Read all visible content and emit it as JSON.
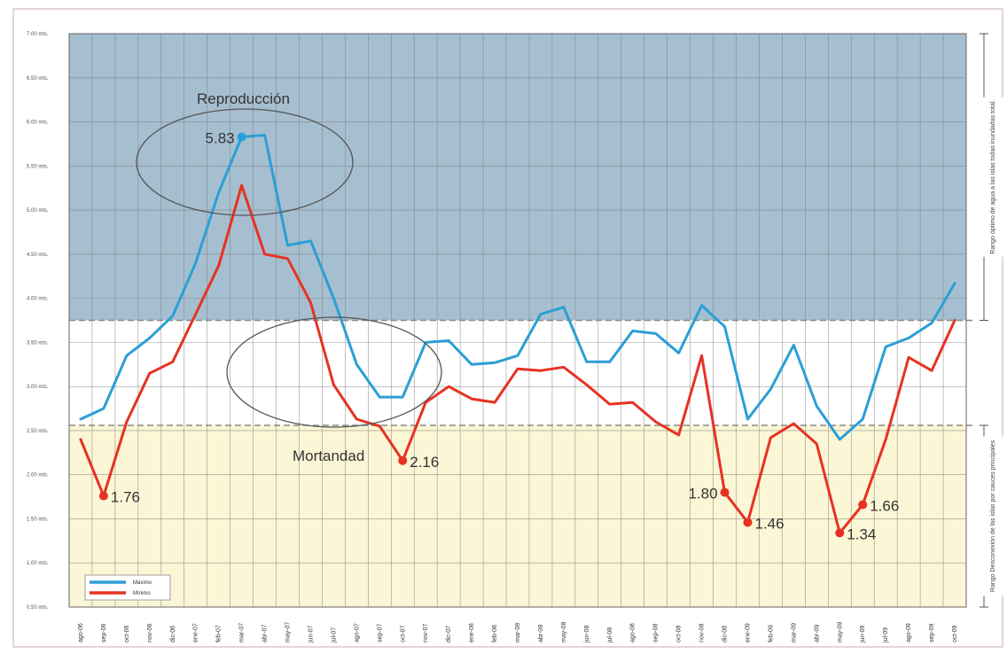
{
  "chart_data": {
    "type": "line",
    "title": "",
    "xlabel": "",
    "ylabel": "",
    "ylim": [
      0.5,
      7.0
    ],
    "grid": true,
    "legend_position": "bottom-left",
    "y_ticks": [
      "0.50 mts.",
      "1.00 mts.",
      "1.50 mts.",
      "2.00 mts.",
      "2.50 mts.",
      "3.00 mts.",
      "3.50 mts.",
      "4.00 mts.",
      "4.50 mts.",
      "5.00 mts.",
      "5.50 mts.",
      "6.00 mts.",
      "6.50 mts.",
      "7.00 mts."
    ],
    "y_tick_values": [
      0.5,
      1.0,
      1.5,
      2.0,
      2.5,
      3.0,
      3.5,
      4.0,
      4.5,
      5.0,
      5.5,
      6.0,
      6.5,
      7.0
    ],
    "x": [
      "ago-06",
      "sep-06",
      "oct-06",
      "nov-06",
      "dic-06",
      "ene-07",
      "feb-07",
      "mar-07",
      "abr-07",
      "may-07",
      "jun-07",
      "jul-07",
      "ago-07",
      "sep-07",
      "oct-07",
      "nov-07",
      "dic-07",
      "ene-08",
      "feb-08",
      "mar-08",
      "abr-08",
      "may-08",
      "jun-08",
      "jul-08",
      "ago-08",
      "sep-08",
      "oct-08",
      "nov-08",
      "dic-08",
      "ene-09",
      "feb-09",
      "mar-09",
      "abr-09",
      "may-09",
      "jun-09",
      "jul-09",
      "ago-09",
      "sep-09",
      "oct-09"
    ],
    "series": [
      {
        "name": "Máximo",
        "color": "#2a9fd6",
        "values": [
          2.63,
          2.75,
          3.35,
          3.55,
          3.8,
          4.4,
          5.2,
          5.83,
          5.85,
          4.6,
          4.65,
          4.0,
          3.25,
          2.88,
          2.88,
          3.5,
          3.52,
          3.25,
          3.27,
          3.35,
          3.82,
          3.9,
          3.28,
          3.28,
          3.63,
          3.6,
          3.38,
          3.92,
          3.68,
          2.63,
          2.97,
          3.47,
          2.78,
          2.4,
          2.63,
          3.45,
          3.55,
          3.72,
          4.17
        ]
      },
      {
        "name": "Mínimo",
        "color": "#e63223",
        "values": [
          2.4,
          1.76,
          2.6,
          3.15,
          3.28,
          3.82,
          4.37,
          5.28,
          4.5,
          4.45,
          3.95,
          3.02,
          2.63,
          2.55,
          2.16,
          2.82,
          3.0,
          2.86,
          2.82,
          3.2,
          3.18,
          3.22,
          3.02,
          2.8,
          2.82,
          2.6,
          2.45,
          3.35,
          1.8,
          1.46,
          2.42,
          2.58,
          2.35,
          1.34,
          1.66,
          2.4,
          3.33,
          3.18,
          3.75
        ]
      }
    ],
    "bands": [
      {
        "from": 3.75,
        "to": 7.0,
        "color": "#a6bfd0",
        "label": "Rango óptimo de agua a las islas todas inundadas total."
      },
      {
        "from": 0.5,
        "to": 2.56,
        "color": "#fbf6d5",
        "label": "Rango Desconexión de las islas por cauces principales"
      }
    ],
    "annotations": [
      {
        "text": "5.83",
        "series": 0,
        "index": 7,
        "side": "left"
      },
      {
        "text": "1.76",
        "series": 1,
        "index": 1,
        "side": "right"
      },
      {
        "text": "2.16",
        "series": 1,
        "index": 14,
        "side": "right"
      },
      {
        "text": "1.80",
        "series": 1,
        "index": 28,
        "side": "left"
      },
      {
        "text": "1.46",
        "series": 1,
        "index": 29,
        "side": "right"
      },
      {
        "text": "1.34",
        "series": 1,
        "index": 33,
        "side": "right"
      },
      {
        "text": "1.66",
        "series": 1,
        "index": 34,
        "side": "right"
      }
    ],
    "labels": {
      "reproduccion": "Reproducción",
      "mortandad": "Mortandad"
    }
  }
}
